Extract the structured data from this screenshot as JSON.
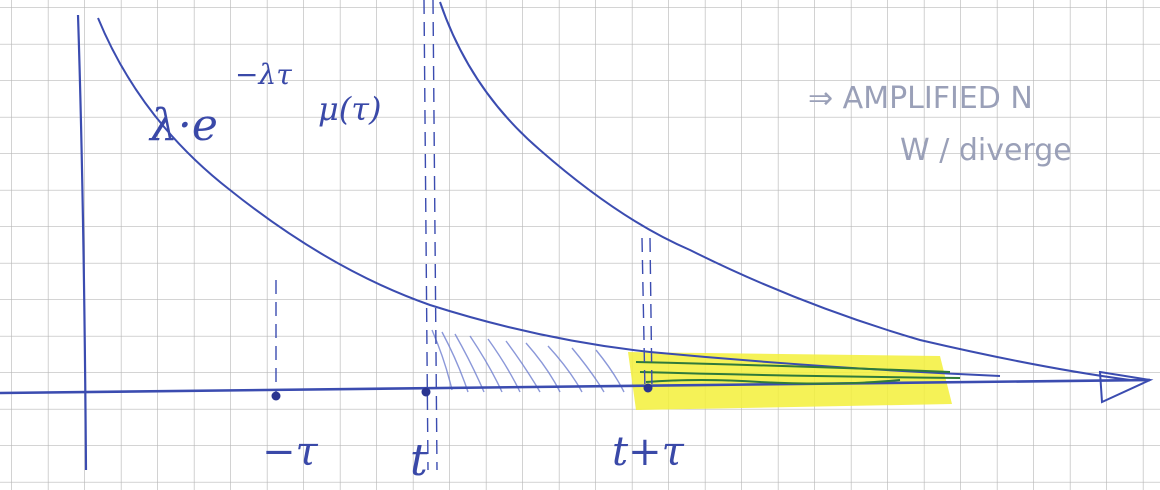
{
  "diagram": {
    "curve_labels": {
      "exponential": "λ·e",
      "exponent": "−λτ",
      "mu": "μ(τ)"
    },
    "axis_labels": [
      "−τ",
      "t",
      "t+τ"
    ],
    "note": {
      "line1": "⇒ AMPLIFIED N",
      "line2": "W / diverge"
    }
  }
}
